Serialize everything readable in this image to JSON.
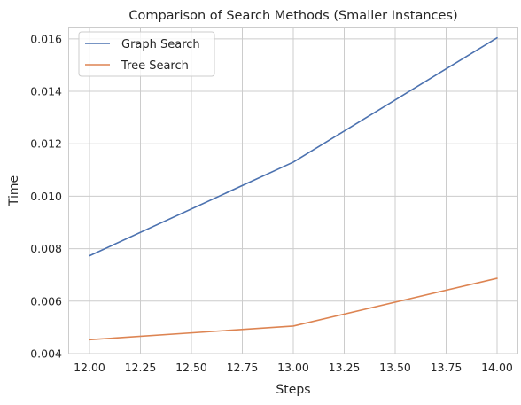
{
  "chart_data": {
    "type": "line",
    "title": "Comparison of Search Methods (Smaller Instances)",
    "xlabel": "Steps",
    "ylabel": "Time",
    "xlim": [
      11.9,
      14.1
    ],
    "ylim": [
      0.004,
      0.0164
    ],
    "xticks": [
      "12.00",
      "12.25",
      "12.50",
      "12.75",
      "13.00",
      "13.25",
      "13.50",
      "13.75",
      "14.00"
    ],
    "yticks": [
      "0.004",
      "0.006",
      "0.008",
      "0.010",
      "0.012",
      "0.014",
      "0.016"
    ],
    "grid": true,
    "legend_position": "top-left",
    "x": [
      12,
      13,
      14
    ],
    "series": [
      {
        "name": "Graph Search",
        "values": [
          0.00773,
          0.0113,
          0.01604
        ],
        "color": "#4c72b0"
      },
      {
        "name": "Tree Search",
        "values": [
          0.00453,
          0.00505,
          0.00687
        ],
        "color": "#dd8452"
      }
    ]
  }
}
